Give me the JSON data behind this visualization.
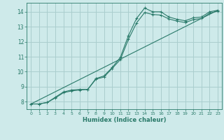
{
  "xlabel": "Humidex (Indice chaleur)",
  "bg_color": "#ceeaea",
  "grid_color": "#aacece",
  "line_color": "#2a7a6a",
  "xlim": [
    -0.5,
    23.5
  ],
  "ylim": [
    7.5,
    14.6
  ],
  "xticks": [
    0,
    1,
    2,
    3,
    4,
    5,
    6,
    7,
    8,
    9,
    10,
    11,
    12,
    13,
    14,
    15,
    16,
    17,
    18,
    19,
    20,
    21,
    22,
    23
  ],
  "yticks": [
    8,
    9,
    10,
    11,
    12,
    13,
    14
  ],
  "curve1_x": [
    0,
    1,
    2,
    3,
    4,
    5,
    6,
    7,
    8,
    9,
    10,
    11,
    12,
    13,
    14,
    15,
    16,
    17,
    18,
    19,
    20,
    21,
    22,
    23
  ],
  "curve1_y": [
    7.85,
    7.85,
    7.95,
    8.3,
    8.65,
    8.78,
    8.82,
    8.82,
    9.55,
    9.72,
    10.28,
    10.95,
    12.4,
    13.55,
    14.25,
    14.0,
    14.0,
    13.65,
    13.5,
    13.4,
    13.6,
    13.65,
    14.0,
    14.1
  ],
  "curve2_x": [
    0,
    1,
    2,
    3,
    4,
    5,
    6,
    7,
    8,
    9,
    10,
    11,
    12,
    13,
    14,
    15,
    16,
    17,
    18,
    19,
    20,
    21,
    22,
    23
  ],
  "curve2_y": [
    7.85,
    7.85,
    7.95,
    8.25,
    8.6,
    8.72,
    8.78,
    8.82,
    9.5,
    9.65,
    10.22,
    10.8,
    12.15,
    13.25,
    13.95,
    13.82,
    13.78,
    13.52,
    13.38,
    13.28,
    13.48,
    13.55,
    13.9,
    14.05
  ],
  "line_x": [
    0,
    23
  ],
  "line_y": [
    7.85,
    14.1
  ]
}
